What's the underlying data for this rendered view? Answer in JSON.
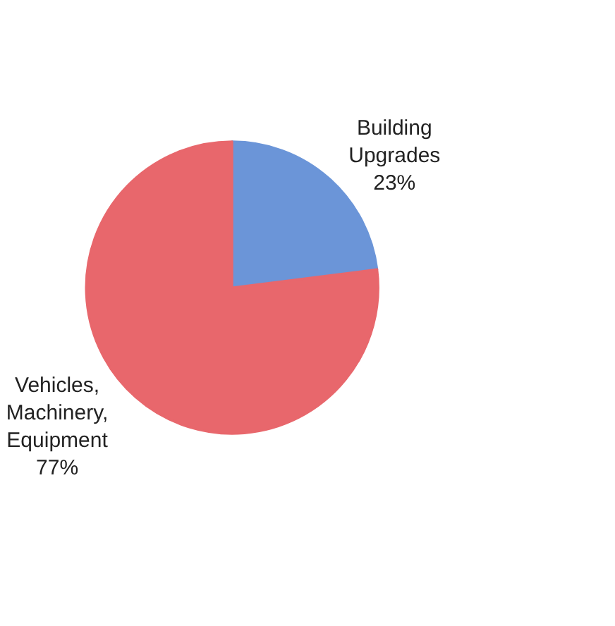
{
  "chart_data": {
    "type": "pie",
    "categories": [
      "Building Upgrades",
      "Vehicles, Machinery, Equipment"
    ],
    "values": [
      23,
      77
    ],
    "value_labels": [
      "23%",
      "77%"
    ],
    "colors": [
      "#6b95d8",
      "#e8676c"
    ]
  }
}
